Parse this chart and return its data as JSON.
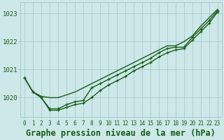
{
  "background_color": "#cce8e8",
  "grid_color": "#aacccc",
  "line_color": "#1a5c1a",
  "title": "Graphe pression niveau de la mer (hPa)",
  "title_fontsize": 8.5,
  "x_ticks": [
    0,
    1,
    2,
    3,
    4,
    5,
    6,
    7,
    8,
    9,
    10,
    11,
    12,
    13,
    14,
    15,
    16,
    17,
    18,
    19,
    20,
    21,
    22,
    23
  ],
  "ylim": [
    1019.3,
    1023.4
  ],
  "yticks": [
    1020,
    1021,
    1022,
    1023
  ],
  "series": [
    {
      "data": [
        1020.7,
        1020.2,
        1020.05,
        1020.0,
        1020.0,
        1020.1,
        1020.2,
        1020.35,
        1020.5,
        1020.65,
        1020.8,
        1020.95,
        1021.1,
        1021.25,
        1021.4,
        1021.55,
        1021.7,
        1021.85,
        1021.85,
        1022.0,
        1022.2,
        1022.55,
        1022.85,
        1023.15
      ],
      "linestyle": "-",
      "linewidth": 1.0,
      "has_markers": false
    },
    {
      "data": [
        1020.7,
        1020.2,
        1020.0,
        1019.6,
        1019.6,
        1019.75,
        1019.85,
        1019.9,
        1020.35,
        1020.5,
        1020.65,
        1020.8,
        1020.95,
        1021.1,
        1021.25,
        1021.4,
        1021.6,
        1021.75,
        1021.8,
        1021.8,
        1022.15,
        1022.45,
        1022.75,
        1023.1
      ],
      "linestyle": "-",
      "linewidth": 1.0,
      "has_markers": true
    },
    {
      "data": [
        1020.7,
        1020.2,
        1020.0,
        1019.55,
        1019.55,
        1019.65,
        1019.75,
        1019.8,
        1020.0,
        1020.25,
        1020.45,
        1020.6,
        1020.75,
        1020.95,
        1021.1,
        1021.25,
        1021.45,
        1021.6,
        1021.7,
        1021.75,
        1022.05,
        1022.35,
        1022.65,
        1023.05
      ],
      "linestyle": "-",
      "linewidth": 1.0,
      "has_markers": true
    }
  ]
}
